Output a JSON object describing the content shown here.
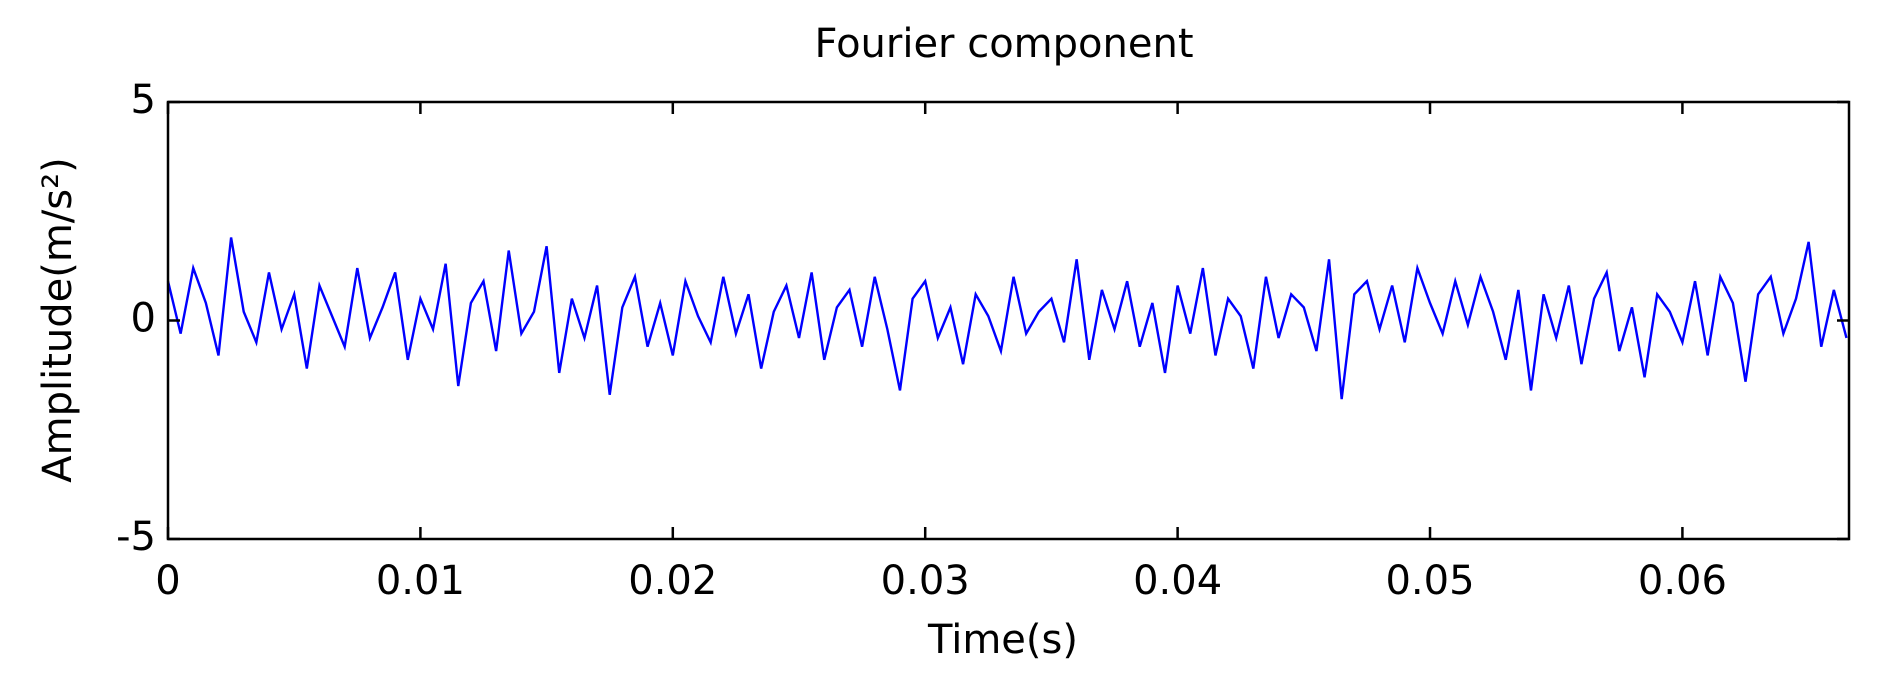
{
  "chart_data": {
    "type": "line",
    "title": "Fourier component",
    "xlabel": "Time(s)",
    "ylabel": "Amplitude(m/s²)",
    "xlim": [
      0,
      0.0666
    ],
    "ylim": [
      -5,
      5
    ],
    "xticks": [
      0,
      0.01,
      0.02,
      0.03,
      0.04,
      0.05,
      0.06
    ],
    "yticks": [
      -5,
      0,
      5
    ],
    "x": [
      0,
      0.0005,
      0.001,
      0.0015,
      0.002,
      0.0025,
      0.003,
      0.0035,
      0.004,
      0.0045,
      0.005,
      0.0055,
      0.006,
      0.0065,
      0.007,
      0.0075,
      0.008,
      0.0085,
      0.009,
      0.0095,
      0.01,
      0.0105,
      0.011,
      0.0115,
      0.012,
      0.0125,
      0.013,
      0.0135,
      0.014,
      0.0145,
      0.015,
      0.0155,
      0.016,
      0.0165,
      0.017,
      0.0175,
      0.018,
      0.0185,
      0.019,
      0.0195,
      0.02,
      0.0205,
      0.021,
      0.0215,
      0.022,
      0.0225,
      0.023,
      0.0235,
      0.024,
      0.0245,
      0.025,
      0.0255,
      0.026,
      0.0265,
      0.027,
      0.0275,
      0.028,
      0.0285,
      0.029,
      0.0295,
      0.03,
      0.0305,
      0.031,
      0.0315,
      0.032,
      0.0325,
      0.033,
      0.0335,
      0.034,
      0.0345,
      0.035,
      0.0355,
      0.036,
      0.0365,
      0.037,
      0.0375,
      0.038,
      0.0385,
      0.039,
      0.0395,
      0.04,
      0.0405,
      0.041,
      0.0415,
      0.042,
      0.0425,
      0.043,
      0.0435,
      0.044,
      0.0445,
      0.045,
      0.0455,
      0.046,
      0.0465,
      0.047,
      0.0475,
      0.048,
      0.0485,
      0.049,
      0.0495,
      0.05,
      0.0505,
      0.051,
      0.0515,
      0.052,
      0.0525,
      0.053,
      0.0535,
      0.054,
      0.0545,
      0.055,
      0.0555,
      0.056,
      0.0565,
      0.057,
      0.0575,
      0.058,
      0.0585,
      0.059,
      0.0595,
      0.06,
      0.0605,
      0.061,
      0.0615,
      0.062,
      0.0625,
      0.063,
      0.0635,
      0.064,
      0.0645,
      0.065,
      0.0655,
      0.066,
      0.0665
    ],
    "series": [
      {
        "color": "#0000ff",
        "values": [
          0.9,
          -0.3,
          1.2,
          0.4,
          -0.8,
          1.9,
          0.2,
          -0.5,
          1.1,
          -0.2,
          0.6,
          -1.1,
          0.8,
          0.1,
          -0.6,
          1.2,
          -0.4,
          0.3,
          1.1,
          -0.9,
          0.5,
          -0.2,
          1.3,
          -1.5,
          0.4,
          0.9,
          -0.7,
          1.6,
          -0.3,
          0.2,
          1.7,
          -1.2,
          0.5,
          -0.4,
          0.8,
          -1.7,
          0.3,
          1.0,
          -0.6,
          0.4,
          -0.8,
          0.9,
          0.1,
          -0.5,
          1.0,
          -0.3,
          0.6,
          -1.1,
          0.2,
          0.8,
          -0.4,
          1.1,
          -0.9,
          0.3,
          0.7,
          -0.6,
          1.0,
          -0.2,
          -1.6,
          0.5,
          0.9,
          -0.4,
          0.3,
          -1.0,
          0.6,
          0.1,
          -0.7,
          1.0,
          -0.3,
          0.2,
          0.5,
          -0.5,
          1.4,
          -0.9,
          0.7,
          -0.2,
          0.9,
          -0.6,
          0.4,
          -1.2,
          0.8,
          -0.3,
          1.2,
          -0.8,
          0.5,
          0.1,
          -1.1,
          1.0,
          -0.4,
          0.6,
          0.3,
          -0.7,
          1.4,
          -1.8,
          0.6,
          0.9,
          -0.2,
          0.8,
          -0.5,
          1.2,
          0.4,
          -0.3,
          0.9,
          -0.1,
          1.0,
          0.2,
          -0.9,
          0.7,
          -1.6,
          0.6,
          -0.4,
          0.8,
          -1.0,
          0.5,
          1.1,
          -0.7,
          0.3,
          -1.3,
          0.6,
          0.2,
          -0.5,
          0.9,
          -0.8,
          1.0,
          0.4,
          -1.4,
          0.6,
          1.0,
          -0.3,
          0.5,
          1.8,
          -0.6,
          0.7,
          -0.4
        ]
      }
    ]
  }
}
